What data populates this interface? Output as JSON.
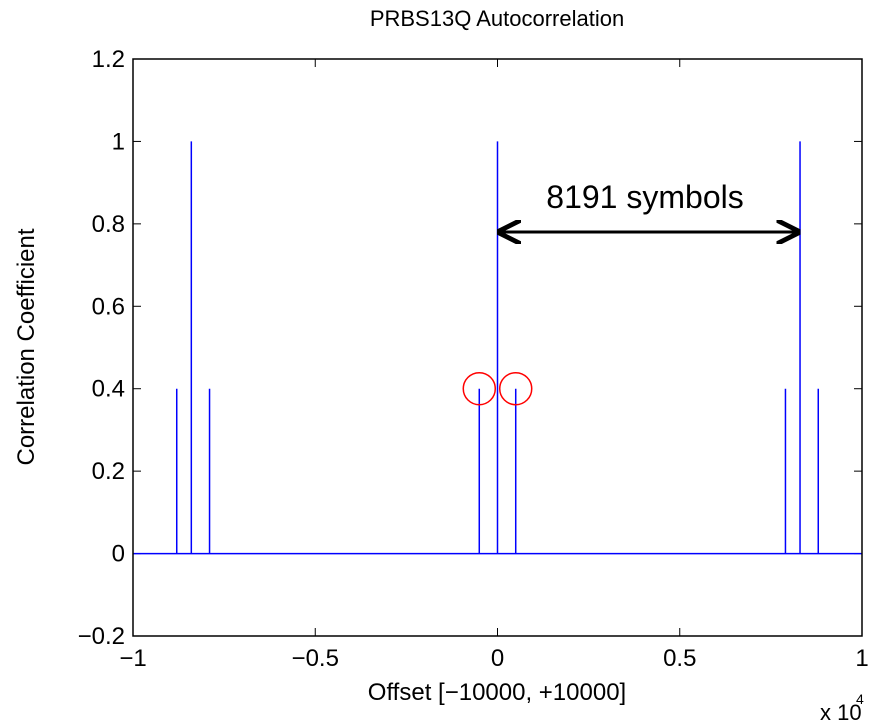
{
  "chart_data": {
    "type": "stem",
    "title": "PRBS13Q Autocorrelation",
    "x_label": "Offset [−10000, +10000]",
    "y_label": "Correlation Coefficient",
    "x_scale": {
      "base": "x 10",
      "exponent": "4"
    },
    "annotation": "8191 symbols",
    "x": [
      -0.88,
      -0.84,
      -0.79,
      -0.05,
      0,
      0.05,
      0.79,
      0.83,
      0.88
    ],
    "values": [
      0.4,
      1,
      0.4,
      0.4,
      1,
      0.4,
      0.4,
      1,
      0.4
    ],
    "color": "#0000ff",
    "highlight_color": "#ff0000",
    "xlim": [
      -1,
      1
    ],
    "xticks": [
      {
        "value": -1,
        "label": "−1"
      },
      {
        "value": -0.5,
        "label": "−0.5"
      },
      0,
      0.5,
      1
    ],
    "ylim": [
      -0.2,
      1.2
    ],
    "yticks": [
      {
        "value": -0.2,
        "label": "−0.2"
      },
      0,
      0.2,
      0.4,
      0.6,
      0.8,
      1,
      1.2
    ],
    "grid": false
  }
}
